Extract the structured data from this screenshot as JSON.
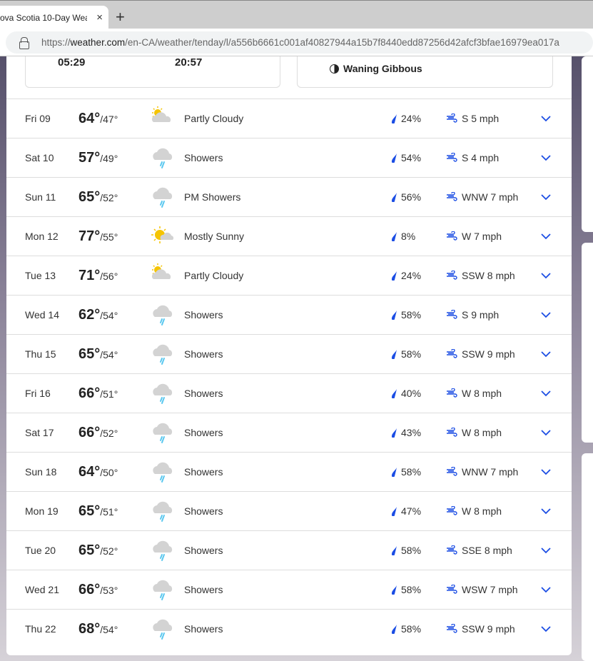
{
  "browser": {
    "tab_title": "ova Scotia 10-Day Wea",
    "close": "×",
    "new_tab": "+",
    "url_prefix": "https://",
    "url_domain": "weather.com",
    "url_path": "/en-CA/weather/tenday/l/a556b6661c001af40827944a15b7f8440edd87256d42afcf3bfae16979ea017a"
  },
  "sun_moon": {
    "sunrise": "05:29",
    "sunset": "20:57",
    "moon_phase": "Waning Gibbous"
  },
  "colors": {
    "accent": "#1b4de4",
    "rain": "#5bc8ef"
  },
  "days": [
    {
      "day": "Fri 09",
      "hi": "64°",
      "lo": "47°",
      "icon": "partly-cloudy",
      "cond": "Partly Cloudy",
      "precip": "24%",
      "wind": "S 5 mph"
    },
    {
      "day": "Sat 10",
      "hi": "57°",
      "lo": "49°",
      "icon": "showers",
      "cond": "Showers",
      "precip": "54%",
      "wind": "S 4 mph"
    },
    {
      "day": "Sun 11",
      "hi": "65°",
      "lo": "52°",
      "icon": "showers",
      "cond": "PM Showers",
      "precip": "56%",
      "wind": "WNW 7 mph"
    },
    {
      "day": "Mon 12",
      "hi": "77°",
      "lo": "55°",
      "icon": "mostly-sunny",
      "cond": "Mostly Sunny",
      "precip": "8%",
      "wind": "W 7 mph"
    },
    {
      "day": "Tue 13",
      "hi": "71°",
      "lo": "56°",
      "icon": "partly-cloudy",
      "cond": "Partly Cloudy",
      "precip": "24%",
      "wind": "SSW 8 mph"
    },
    {
      "day": "Wed 14",
      "hi": "62°",
      "lo": "54°",
      "icon": "showers",
      "cond": "Showers",
      "precip": "58%",
      "wind": "S 9 mph"
    },
    {
      "day": "Thu 15",
      "hi": "65°",
      "lo": "54°",
      "icon": "showers",
      "cond": "Showers",
      "precip": "58%",
      "wind": "SSW 9 mph"
    },
    {
      "day": "Fri 16",
      "hi": "66°",
      "lo": "51°",
      "icon": "showers",
      "cond": "Showers",
      "precip": "40%",
      "wind": "W 8 mph"
    },
    {
      "day": "Sat 17",
      "hi": "66°",
      "lo": "52°",
      "icon": "showers",
      "cond": "Showers",
      "precip": "43%",
      "wind": "W 8 mph"
    },
    {
      "day": "Sun 18",
      "hi": "64°",
      "lo": "50°",
      "icon": "showers",
      "cond": "Showers",
      "precip": "58%",
      "wind": "WNW 7 mph"
    },
    {
      "day": "Mon 19",
      "hi": "65°",
      "lo": "51°",
      "icon": "showers",
      "cond": "Showers",
      "precip": "47%",
      "wind": "W 8 mph"
    },
    {
      "day": "Tue 20",
      "hi": "65°",
      "lo": "52°",
      "icon": "showers",
      "cond": "Showers",
      "precip": "58%",
      "wind": "SSE 8 mph"
    },
    {
      "day": "Wed 21",
      "hi": "66°",
      "lo": "53°",
      "icon": "showers",
      "cond": "Showers",
      "precip": "58%",
      "wind": "WSW 7 mph"
    },
    {
      "day": "Thu 22",
      "hi": "68°",
      "lo": "54°",
      "icon": "showers",
      "cond": "Showers",
      "precip": "58%",
      "wind": "SSW 9 mph"
    }
  ]
}
